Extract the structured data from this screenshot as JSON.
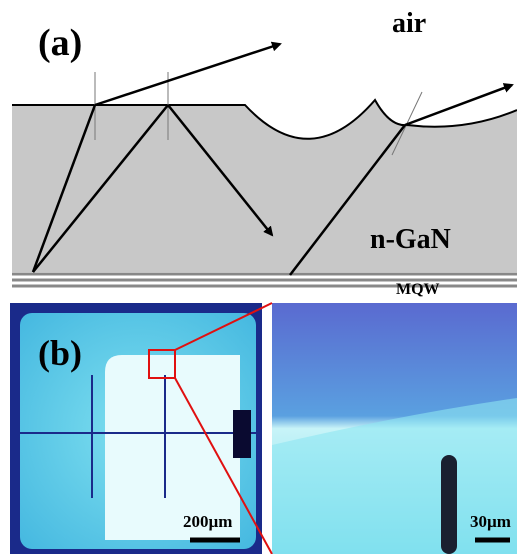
{
  "panel_a": {
    "label": "(a)",
    "medium_top": "air",
    "medium_bottom": "n-GaN",
    "layer": "MQW"
  },
  "panel_b": {
    "label": "(b)",
    "scale_left": "200µm",
    "scale_right": "30µm"
  }
}
